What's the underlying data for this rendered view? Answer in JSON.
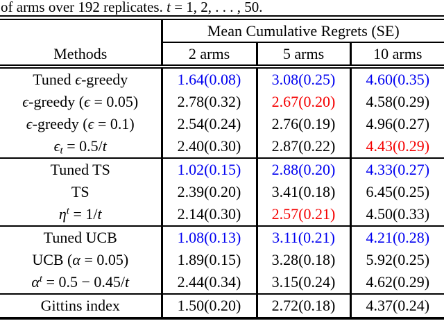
{
  "palette": {
    "blue": "#0000F0",
    "red": "#F50000",
    "black": "#000000"
  },
  "caption": {
    "segments": [
      {
        "t": "of arms over 192 replicates. "
      },
      {
        "t": "t",
        "s": "i"
      },
      {
        "t": " = 1, 2, . . . , 50."
      }
    ]
  },
  "table": {
    "group_header": "Mean Cumulative Regrets (SE)",
    "methods_header": "Methods",
    "arm_headers": [
      "2 arms",
      "5 arms",
      "10 arms"
    ],
    "sections": [
      {
        "rows": [
          {
            "label": [
              {
                "t": "Tuned "
              },
              {
                "t": "ϵ",
                "s": "i"
              },
              {
                "t": "-greedy"
              }
            ],
            "cells": [
              {
                "v": "1.64(0.08)",
                "c": "blue"
              },
              {
                "v": "3.08(0.25)",
                "c": "blue"
              },
              {
                "v": "4.60(0.35)",
                "c": "blue"
              }
            ]
          },
          {
            "label": [
              {
                "t": "ϵ",
                "s": "i"
              },
              {
                "t": "-greedy ("
              },
              {
                "t": "ϵ",
                "s": "i"
              },
              {
                "t": " = 0.05)"
              }
            ],
            "cells": [
              {
                "v": "2.78(0.32)",
                "c": "black"
              },
              {
                "v": "2.67(0.20)",
                "c": "red"
              },
              {
                "v": "4.58(0.29)",
                "c": "black"
              }
            ]
          },
          {
            "label": [
              {
                "t": "ϵ",
                "s": "i"
              },
              {
                "t": "-greedy ("
              },
              {
                "t": "ϵ",
                "s": "i"
              },
              {
                "t": " = 0.1)"
              }
            ],
            "cells": [
              {
                "v": "2.54(0.24)",
                "c": "black"
              },
              {
                "v": "2.76(0.19)",
                "c": "black"
              },
              {
                "v": "4.96(0.27)",
                "c": "black"
              }
            ]
          },
          {
            "label": [
              {
                "t": "ϵ",
                "s": "i"
              },
              {
                "t": "t",
                "s": "isub"
              },
              {
                "t": " = 0.5/"
              },
              {
                "t": "t",
                "s": "i"
              }
            ],
            "cells": [
              {
                "v": "2.40(0.30)",
                "c": "black"
              },
              {
                "v": "2.87(0.22)",
                "c": "black"
              },
              {
                "v": "4.43(0.29)",
                "c": "red"
              }
            ]
          }
        ]
      },
      {
        "rows": [
          {
            "label": [
              {
                "t": "Tuned TS"
              }
            ],
            "cells": [
              {
                "v": "1.02(0.15)",
                "c": "blue"
              },
              {
                "v": "2.88(0.20)",
                "c": "blue"
              },
              {
                "v": "4.33(0.27)",
                "c": "blue"
              }
            ]
          },
          {
            "label": [
              {
                "t": "TS"
              }
            ],
            "cells": [
              {
                "v": "2.39(0.20)",
                "c": "black"
              },
              {
                "v": "3.41(0.18)",
                "c": "black"
              },
              {
                "v": "6.45(0.25)",
                "c": "black"
              }
            ]
          },
          {
            "label": [
              {
                "t": "η",
                "s": "i"
              },
              {
                "t": "t",
                "s": "isup"
              },
              {
                "t": " = 1/"
              },
              {
                "t": "t",
                "s": "i"
              }
            ],
            "cells": [
              {
                "v": "2.14(0.30)",
                "c": "black"
              },
              {
                "v": "2.57(0.21)",
                "c": "red"
              },
              {
                "v": "4.50(0.33)",
                "c": "black"
              }
            ]
          }
        ]
      },
      {
        "rows": [
          {
            "label": [
              {
                "t": "Tuned UCB"
              }
            ],
            "cells": [
              {
                "v": "1.08(0.13)",
                "c": "blue"
              },
              {
                "v": "3.11(0.21)",
                "c": "blue"
              },
              {
                "v": "4.21(0.28)",
                "c": "blue"
              }
            ]
          },
          {
            "label": [
              {
                "t": "UCB ("
              },
              {
                "t": "α",
                "s": "i"
              },
              {
                "t": " = 0.05)"
              }
            ],
            "cells": [
              {
                "v": "1.89(0.15)",
                "c": "black"
              },
              {
                "v": "3.28(0.18)",
                "c": "black"
              },
              {
                "v": "5.92(0.25)",
                "c": "black"
              }
            ]
          },
          {
            "label": [
              {
                "t": "α",
                "s": "i"
              },
              {
                "t": "t",
                "s": "isup"
              },
              {
                "t": " = 0.5 − 0.45/"
              },
              {
                "t": "t",
                "s": "i"
              }
            ],
            "cells": [
              {
                "v": "2.44(0.34)",
                "c": "black"
              },
              {
                "v": "3.15(0.24)",
                "c": "black"
              },
              {
                "v": "4.62(0.29)",
                "c": "black"
              }
            ]
          }
        ]
      },
      {
        "rows": [
          {
            "label": [
              {
                "t": "Gittins index"
              }
            ],
            "cells": [
              {
                "v": "1.50(0.20)",
                "c": "black"
              },
              {
                "v": "2.72(0.18)",
                "c": "black"
              },
              {
                "v": "4.37(0.24)",
                "c": "black"
              }
            ]
          }
        ]
      }
    ]
  }
}
